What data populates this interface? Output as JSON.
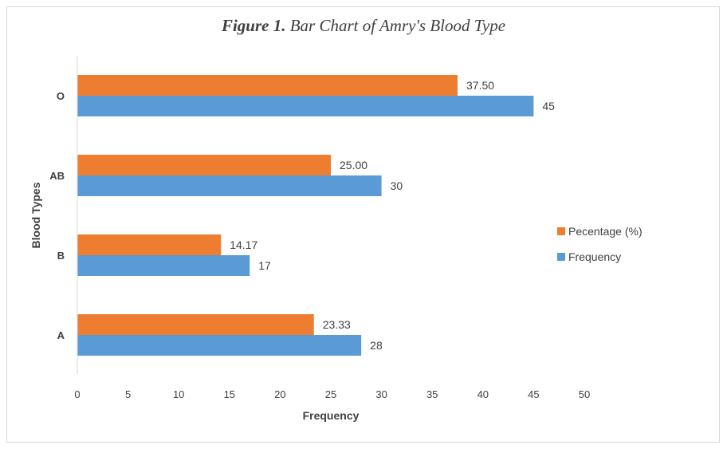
{
  "chart_data": {
    "type": "bar",
    "orientation": "horizontal",
    "title_bold": "Figure 1.",
    "title_rest": " Bar Chart of Amry's Blood Type",
    "xlabel": "Frequency",
    "ylabel": "Blood Types",
    "xlim": [
      0,
      50
    ],
    "xticks": [
      "0",
      "5",
      "10",
      "15",
      "20",
      "25",
      "30",
      "35",
      "40",
      "45",
      "50"
    ],
    "categories": [
      "O",
      "AB",
      "B",
      "A"
    ],
    "series": [
      {
        "name": "Pecentage (%)",
        "color": "#ed7d31",
        "values": [
          37.5,
          25.0,
          14.17,
          23.33
        ],
        "labels": [
          "37.50",
          "25.00",
          "14.17",
          "23.33"
        ]
      },
      {
        "name": "Frequency",
        "color": "#5b9bd5",
        "values": [
          45,
          30,
          17,
          28
        ],
        "labels": [
          "45",
          "30",
          "17",
          "28"
        ]
      }
    ],
    "legend_position": "right",
    "grid": false
  }
}
